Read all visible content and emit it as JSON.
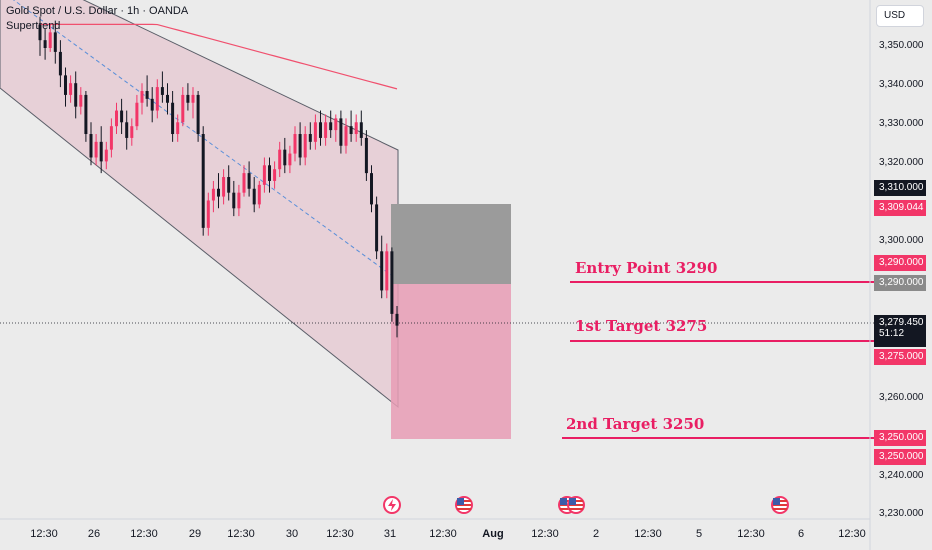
{
  "legend": {
    "symbol": "Gold Spot / U.S. Dollar · 1h · OANDA",
    "indicator": "Supertrend"
  },
  "currency_button": "USD",
  "annotations": {
    "entry": "Entry Point 3290",
    "target1": "1st Target 3275",
    "target2": "2nd  Target 3250"
  },
  "price_axis": {
    "ticks": [
      "3,350.000",
      "3,340.000",
      "3,330.000",
      "3,320.000",
      "3,300.000",
      "3,260.000",
      "3,240.000",
      "3,230.000"
    ],
    "badges": {
      "high": "3,310.000",
      "supertrend": "3,309.044",
      "entry_red": "3,290.000",
      "entry_gray": "3,290.000",
      "current": "3,279.450",
      "countdown": "51:12",
      "target1": "3,275.000",
      "target2_a": "3,250.000",
      "target2_b": "3,250.000"
    }
  },
  "time_axis": {
    "labels": [
      "12:30",
      "26",
      "12:30",
      "29",
      "12:30",
      "30",
      "12:30",
      "31",
      "12:30",
      "Aug",
      "12:30",
      "2",
      "12:30",
      "5",
      "12:30",
      "6",
      "12:30"
    ]
  },
  "colors": {
    "channel_fill": "#e8c8d0",
    "supertrend": "#f0506e",
    "candle_up": "#f23668",
    "candle_down": "#131722",
    "stop_zone": "#9e9e9e",
    "target_zone": "#e8a0b8",
    "accent": "#e91e63"
  },
  "events": [
    "lightning-event-icon",
    "us-flag-event-icon",
    "us-flag-event-icon",
    "us-flag-event-icon"
  ],
  "chart_data": {
    "type": "candlestick",
    "title": "Gold Spot / U.S. Dollar · 1h · OANDA",
    "ylim": [
      3230,
      3355
    ],
    "levels": {
      "entry": 3290,
      "target1": 3275,
      "target2": 3250,
      "current": 3279.45,
      "supertrend": 3309.044,
      "zone_top": 3310
    },
    "candles": [
      [
        3356,
        3358,
        3348,
        3352
      ],
      [
        3352,
        3355,
        3347,
        3350
      ],
      [
        3350,
        3356,
        3349,
        3354
      ],
      [
        3354,
        3357,
        3346,
        3349
      ],
      [
        3349,
        3352,
        3340,
        3343
      ],
      [
        3343,
        3345,
        3335,
        3338
      ],
      [
        3338,
        3343,
        3336,
        3341
      ],
      [
        3341,
        3344,
        3332,
        3335
      ],
      [
        3335,
        3340,
        3333,
        3338
      ],
      [
        3338,
        3339,
        3326,
        3328
      ],
      [
        3328,
        3331,
        3320,
        3322
      ],
      [
        3322,
        3328,
        3320,
        3326
      ],
      [
        3326,
        3330,
        3318,
        3321
      ],
      [
        3321,
        3326,
        3319,
        3324
      ],
      [
        3324,
        3332,
        3322,
        3330
      ],
      [
        3330,
        3336,
        3328,
        3334
      ],
      [
        3334,
        3337,
        3328,
        3331
      ],
      [
        3331,
        3334,
        3324,
        3327
      ],
      [
        3327,
        3332,
        3325,
        3330
      ],
      [
        3330,
        3338,
        3329,
        3336
      ],
      [
        3336,
        3341,
        3333,
        3339
      ],
      [
        3339,
        3343,
        3335,
        3337
      ],
      [
        3337,
        3340,
        3331,
        3334
      ],
      [
        3334,
        3342,
        3332,
        3340
      ],
      [
        3340,
        3344,
        3336,
        3338
      ],
      [
        3338,
        3341,
        3333,
        3336
      ],
      [
        3336,
        3339,
        3326,
        3328
      ],
      [
        3328,
        3333,
        3326,
        3331
      ],
      [
        3331,
        3340,
        3330,
        3338
      ],
      [
        3338,
        3341,
        3334,
        3336
      ],
      [
        3336,
        3340,
        3332,
        3338
      ],
      [
        3338,
        3339,
        3326,
        3328
      ],
      [
        3328,
        3330,
        3302,
        3304
      ],
      [
        3304,
        3313,
        3302,
        3311
      ],
      [
        3311,
        3316,
        3308,
        3314
      ],
      [
        3314,
        3318,
        3309,
        3312
      ],
      [
        3312,
        3319,
        3310,
        3317
      ],
      [
        3317,
        3320,
        3311,
        3313
      ],
      [
        3313,
        3316,
        3307,
        3309
      ],
      [
        3309,
        3315,
        3307,
        3313
      ],
      [
        3313,
        3320,
        3312,
        3318
      ],
      [
        3318,
        3321,
        3312,
        3314
      ],
      [
        3314,
        3317,
        3308,
        3310
      ],
      [
        3310,
        3316,
        3309,
        3315
      ],
      [
        3315,
        3322,
        3313,
        3320
      ],
      [
        3320,
        3322,
        3313,
        3316
      ],
      [
        3316,
        3321,
        3314,
        3319
      ],
      [
        3319,
        3326,
        3317,
        3324
      ],
      [
        3324,
        3327,
        3318,
        3320
      ],
      [
        3320,
        3325,
        3318,
        3323
      ],
      [
        3323,
        3330,
        3321,
        3328
      ],
      [
        3328,
        3331,
        3320,
        3322
      ],
      [
        3322,
        3330,
        3320,
        3328
      ],
      [
        3328,
        3331,
        3324,
        3326
      ],
      [
        3326,
        3333,
        3324,
        3331
      ],
      [
        3331,
        3334,
        3325,
        3327
      ],
      [
        3327,
        3333,
        3325,
        3331
      ],
      [
        3331,
        3334,
        3327,
        3329
      ],
      [
        3329,
        3333,
        3326,
        3332
      ],
      [
        3332,
        3334,
        3323,
        3325
      ],
      [
        3325,
        3332,
        3323,
        3330
      ],
      [
        3330,
        3334,
        3326,
        3328
      ],
      [
        3328,
        3333,
        3326,
        3331
      ],
      [
        3331,
        3334,
        3325,
        3327
      ],
      [
        3327,
        3329,
        3316,
        3318
      ],
      [
        3318,
        3320,
        3308,
        3310
      ],
      [
        3310,
        3312,
        3296,
        3298
      ],
      [
        3298,
        3302,
        3286,
        3288
      ],
      [
        3288,
        3300,
        3286,
        3298
      ],
      [
        3298,
        3299,
        3280,
        3282
      ],
      [
        3282,
        3284,
        3276,
        3279
      ]
    ]
  }
}
